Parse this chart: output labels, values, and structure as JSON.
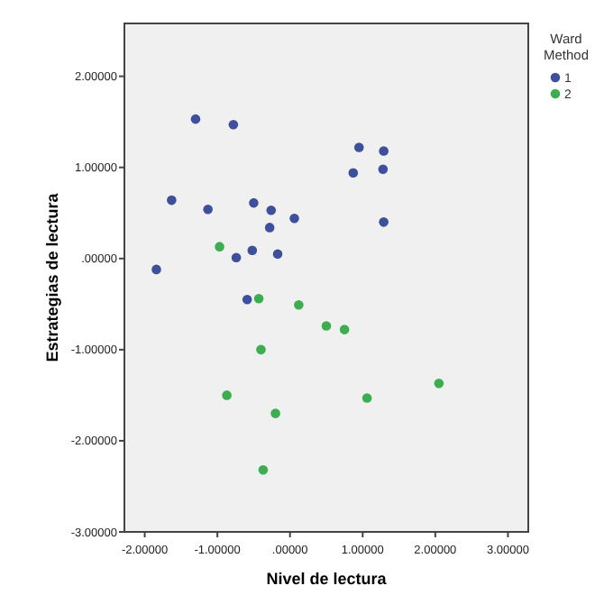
{
  "chart_data": {
    "type": "scatter",
    "xlabel": "Nivel de lectura",
    "ylabel": "Estrategias de lectura",
    "legend_title": "Ward Method",
    "legend": "top right",
    "marker": "circle",
    "grid": false,
    "xlim": [
      -2.28,
      3.28
    ],
    "ylim": [
      -3,
      2.58
    ],
    "xticks": [
      {
        "value": -2,
        "label": "-2.00000"
      },
      {
        "value": -1,
        "label": "-1.00000"
      },
      {
        "value": 0,
        "label": ".00000"
      },
      {
        "value": 1,
        "label": "1.00000"
      },
      {
        "value": 2,
        "label": "2.00000"
      },
      {
        "value": 3,
        "label": "3.00000"
      }
    ],
    "yticks": [
      {
        "value": -3,
        "label": "-3.00000"
      },
      {
        "value": -2,
        "label": "-2.00000"
      },
      {
        "value": -1,
        "label": "-1.00000"
      },
      {
        "value": 0,
        "label": ".00000"
      },
      {
        "value": 1,
        "label": "1.00000"
      },
      {
        "value": 2,
        "label": "2.00000"
      }
    ],
    "series": [
      {
        "name": "1",
        "color": "#3e4f9b",
        "x": [
          -1.3,
          -0.78,
          0.95,
          1.29,
          0.87,
          1.28,
          -1.63,
          -1.13,
          -0.5,
          -0.26,
          0.06,
          -0.28,
          1.29,
          -0.74,
          -0.52,
          -0.17,
          -1.84,
          -0.59
        ],
        "values": [
          1.53,
          1.47,
          1.22,
          1.18,
          0.94,
          0.98,
          0.64,
          0.54,
          0.61,
          0.53,
          0.44,
          0.34,
          0.4,
          0.01,
          0.09,
          0.05,
          -0.12,
          -0.45
        ]
      },
      {
        "name": "2",
        "color": "#3cae50",
        "x": [
          -0.97,
          -0.43,
          0.12,
          0.5,
          0.75,
          -0.4,
          -0.87,
          -0.2,
          1.06,
          2.05,
          -0.37
        ],
        "values": [
          0.13,
          -0.44,
          -0.51,
          -0.74,
          -0.78,
          -1.0,
          -1.5,
          -1.7,
          -1.53,
          -1.37,
          -2.32
        ]
      }
    ]
  }
}
